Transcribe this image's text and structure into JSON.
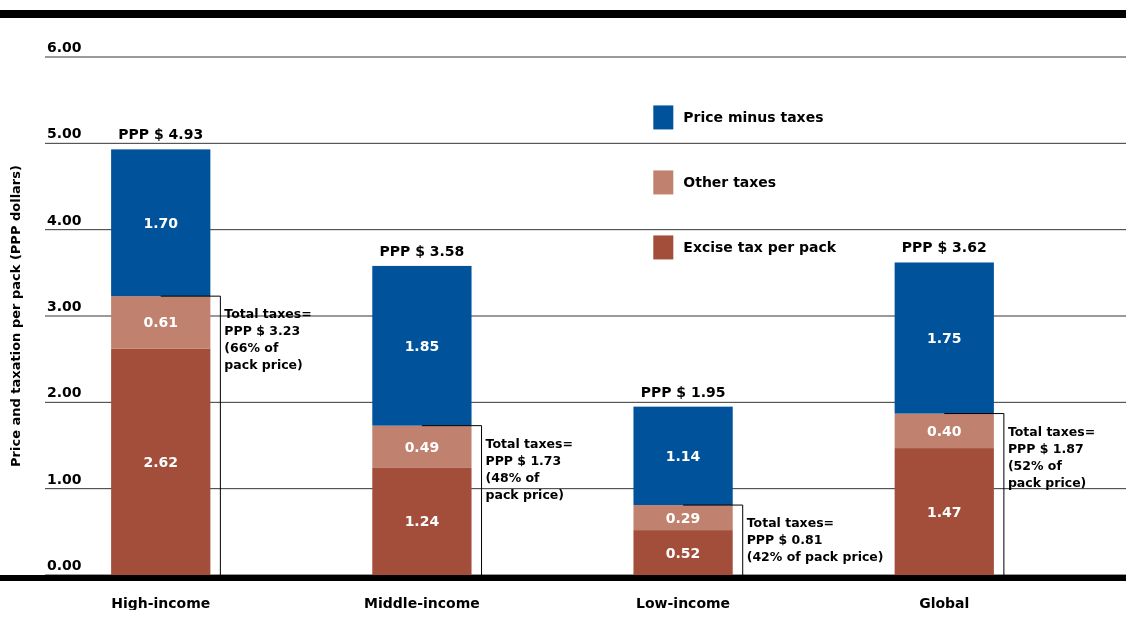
{
  "chart_data": {
    "type": "bar",
    "stacked": true,
    "ylabel": "Price and taxation per pack (PPP dollars)",
    "categories": [
      "High-income",
      "Middle-income",
      "Low-income",
      "Global"
    ],
    "series": [
      {
        "name": "Excise tax per pack",
        "color": "#a34e3a",
        "values": [
          2.62,
          1.24,
          0.52,
          1.47
        ],
        "value_labels": [
          "2.62",
          "1.24",
          "0.52",
          "1.47"
        ]
      },
      {
        "name": "Other taxes",
        "color": "#c0826e",
        "values": [
          0.61,
          0.49,
          0.29,
          0.4
        ],
        "value_labels": [
          "0.61",
          "0.49",
          "0.29",
          "0.40"
        ]
      },
      {
        "name": "Price minus taxes",
        "color": "#00529b",
        "values": [
          1.7,
          1.85,
          1.14,
          1.75
        ],
        "value_labels": [
          "1.70",
          "1.85",
          "1.14",
          "1.75"
        ]
      }
    ],
    "totals": [
      "PPP $ 4.93",
      "PPP $ 3.58",
      "PPP $ 1.95",
      "PPP $ 3.62"
    ],
    "annotations": [
      "Total taxes=\nPPP $ 3.23\n(66% of\npack price)",
      "Total taxes=\nPPP $ 1.73\n(48% of\npack price)",
      {
        "text": "Total taxes=\nPPP $ 0.81\n(42% of pack price)",
        "x": "Low-income",
        "y": 0.81
      },
      "Total taxes=\nPPP $ 1.87\n(52% of\npack price)"
    ],
    "ylim": [
      0,
      6
    ],
    "yticks": [
      {
        "value": 0,
        "label": "0.00"
      },
      {
        "value": 1,
        "label": "1.00"
      },
      {
        "value": 2,
        "label": "2.00"
      },
      {
        "value": 3,
        "label": "3.00"
      },
      {
        "value": 4,
        "label": "4.00"
      },
      {
        "value": 5,
        "label": "5.00"
      },
      {
        "value": 6,
        "label": "6.00"
      }
    ],
    "grid": "y",
    "legend": "top"
  }
}
